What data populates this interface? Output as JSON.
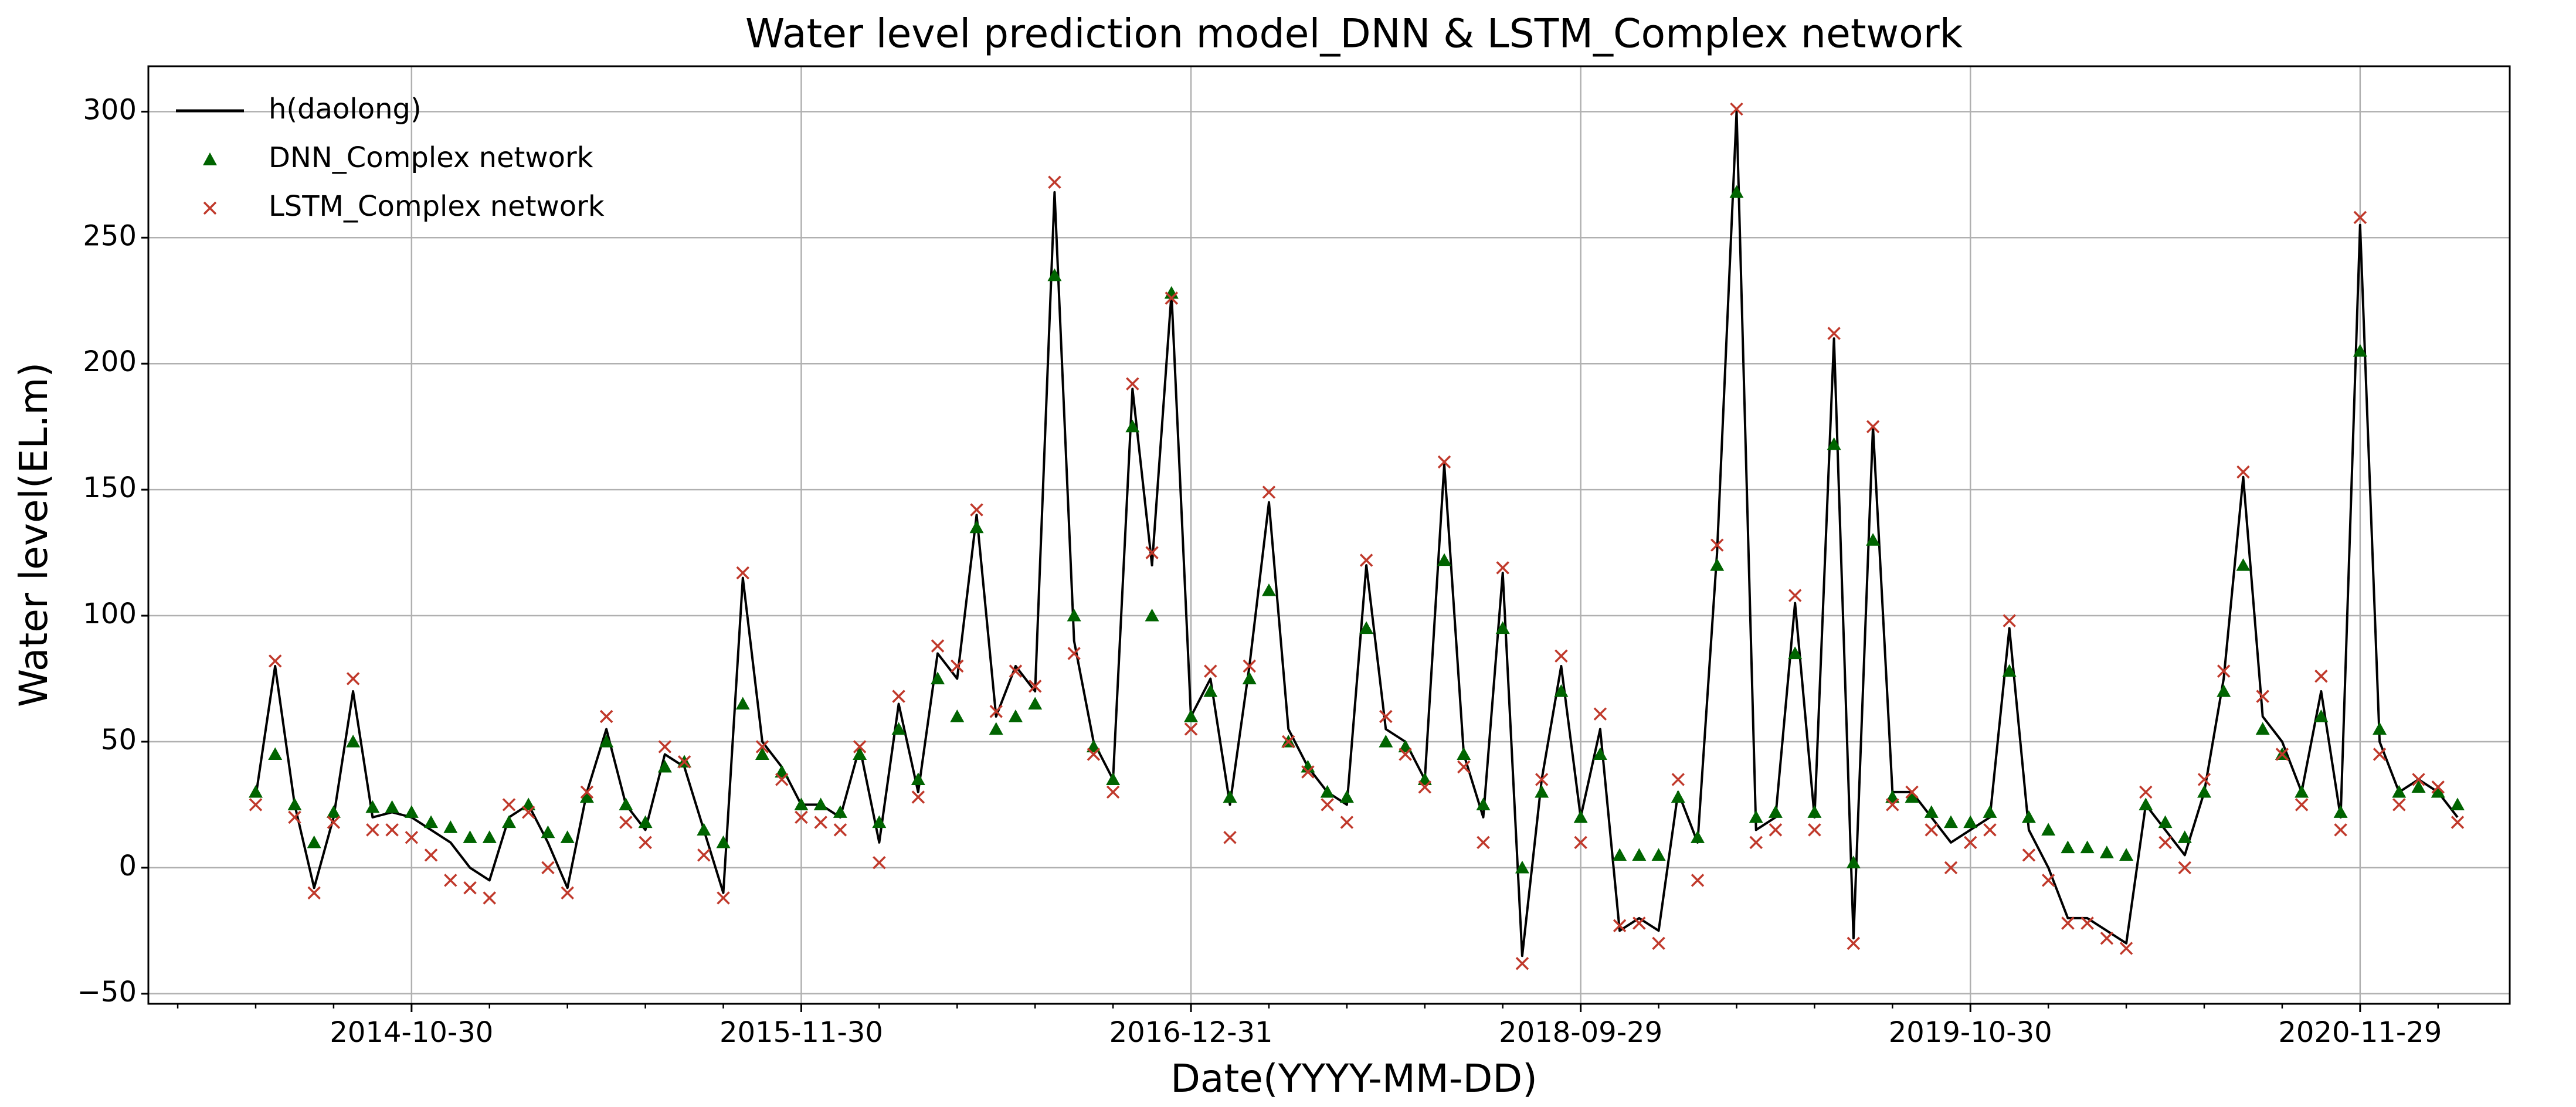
{
  "chart_data": {
    "type": "line",
    "title": "Water level prediction model_DNN & LSTM_Complex network",
    "x_label": "Date(YYYY-MM-DD)",
    "y_label": "Water level(EL.m)",
    "categories": [
      null,
      null,
      null,
      null,
      null,
      null,
      null,
      null,
      "2014-10-30",
      null,
      null,
      null,
      null,
      null,
      null,
      null,
      null,
      null,
      null,
      null,
      null,
      null,
      null,
      null,
      null,
      null,
      null,
      null,
      "2015-11-30",
      null,
      null,
      null,
      null,
      null,
      null,
      null,
      null,
      null,
      null,
      null,
      null,
      null,
      null,
      null,
      null,
      null,
      null,
      null,
      "2016-12-31",
      null,
      null,
      null,
      null,
      null,
      null,
      null,
      null,
      null,
      null,
      null,
      null,
      null,
      null,
      null,
      null,
      null,
      null,
      null,
      "2018-09-29",
      null,
      null,
      null,
      null,
      null,
      null,
      null,
      null,
      null,
      null,
      null,
      null,
      null,
      null,
      null,
      null,
      null,
      null,
      null,
      "2019-10-30",
      null,
      null,
      null,
      null,
      null,
      null,
      null,
      null,
      null,
      null,
      null,
      null,
      null,
      null,
      null,
      null,
      null,
      null,
      null,
      "2020-11-29",
      null,
      null,
      null,
      null,
      null
    ],
    "series": [
      {
        "name": "h(daolong)",
        "color": "#000000",
        "marker": "line",
        "values": [
          28,
          80,
          25,
          -8,
          20,
          70,
          20,
          22,
          20,
          15,
          10,
          0,
          -5,
          20,
          25,
          10,
          -8,
          30,
          55,
          25,
          15,
          45,
          40,
          15,
          -10,
          115,
          50,
          40,
          25,
          25,
          20,
          48,
          10,
          65,
          30,
          85,
          75,
          140,
          60,
          80,
          70,
          268,
          90,
          50,
          35,
          190,
          120,
          228,
          60,
          75,
          25,
          80,
          145,
          55,
          40,
          30,
          25,
          120,
          55,
          50,
          35,
          160,
          45,
          20,
          117,
          -35,
          35,
          80,
          20,
          55,
          -25,
          -20,
          -25,
          30,
          10,
          125,
          300,
          15,
          20,
          105,
          20,
          210,
          -28,
          175,
          30,
          30,
          20,
          10,
          15,
          20,
          95,
          15,
          0,
          -20,
          -20,
          -25,
          -30,
          25,
          15,
          5,
          30,
          75,
          155,
          60,
          50,
          30,
          70,
          20,
          255,
          50,
          30,
          35,
          30,
          20
        ]
      },
      {
        "name": "DNN_Complex network",
        "color": "#006400",
        "marker": "triangle",
        "values": [
          30,
          45,
          25,
          10,
          22,
          50,
          24,
          24,
          22,
          18,
          16,
          12,
          12,
          18,
          25,
          14,
          12,
          28,
          50,
          25,
          18,
          40,
          42,
          15,
          10,
          65,
          45,
          38,
          25,
          25,
          22,
          45,
          18,
          55,
          35,
          75,
          60,
          135,
          55,
          60,
          65,
          235,
          100,
          48,
          35,
          175,
          100,
          228,
          60,
          70,
          28,
          75,
          110,
          50,
          40,
          30,
          28,
          95,
          50,
          48,
          35,
          122,
          45,
          25,
          95,
          0,
          30,
          70,
          20,
          45,
          5,
          5,
          5,
          28,
          12,
          120,
          268,
          20,
          22,
          85,
          22,
          168,
          2,
          130,
          28,
          28,
          22,
          18,
          18,
          22,
          78,
          20,
          15,
          8,
          8,
          6,
          5,
          25,
          18,
          12,
          30,
          70,
          120,
          55,
          45,
          30,
          60,
          22,
          205,
          55,
          30,
          32,
          30,
          25
        ]
      },
      {
        "name": "LSTM_Complex network",
        "color": "#c0392b",
        "marker": "x",
        "values": [
          25,
          82,
          20,
          -10,
          18,
          75,
          15,
          15,
          12,
          5,
          -5,
          -8,
          -12,
          25,
          22,
          0,
          -10,
          30,
          60,
          18,
          10,
          48,
          42,
          5,
          -12,
          117,
          48,
          35,
          20,
          18,
          15,
          48,
          2,
          68,
          28,
          88,
          80,
          142,
          62,
          78,
          72,
          272,
          85,
          45,
          30,
          192,
          125,
          226,
          55,
          78,
          12,
          80,
          149,
          50,
          38,
          25,
          18,
          122,
          60,
          45,
          32,
          161,
          40,
          10,
          119,
          -38,
          35,
          84,
          10,
          61,
          -23,
          -22,
          -30,
          35,
          -5,
          128,
          301,
          10,
          15,
          108,
          15,
          212,
          -30,
          175,
          25,
          30,
          15,
          0,
          10,
          15,
          98,
          5,
          -5,
          -22,
          -22,
          -28,
          -32,
          30,
          10,
          0,
          35,
          78,
          157,
          68,
          45,
          25,
          76,
          15,
          258,
          45,
          25,
          35,
          32,
          18
        ]
      }
    ],
    "ylim": [
      -54,
      318
    ],
    "yticks": [
      {
        "value": -50,
        "label": "−50"
      },
      0,
      50,
      100,
      150,
      200,
      250,
      300
    ],
    "grid": true,
    "legend": "upper left"
  }
}
